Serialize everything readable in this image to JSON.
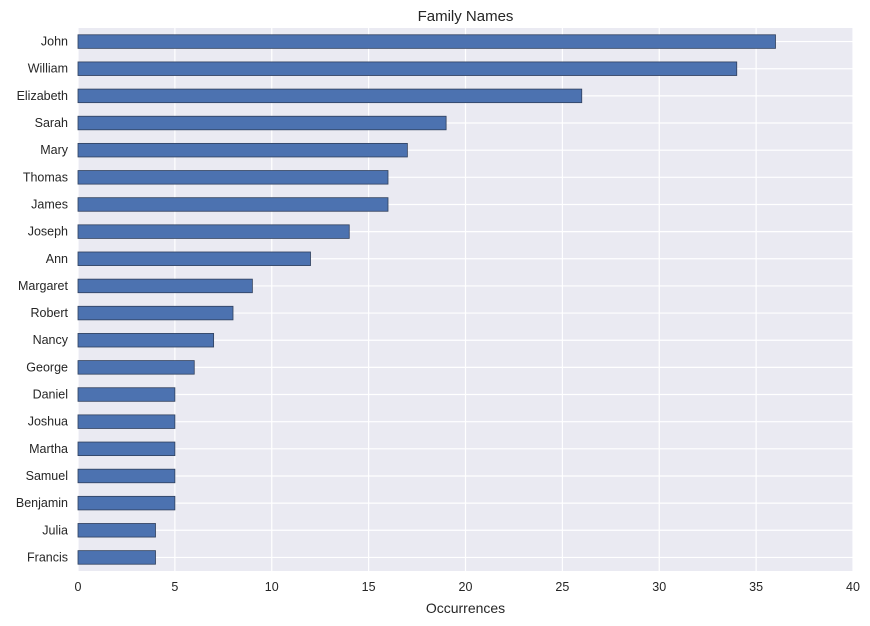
{
  "chart_data": {
    "type": "bar",
    "orientation": "horizontal",
    "title": "Family Names",
    "xlabel": "Occurrences",
    "ylabel": "",
    "xlim": [
      0,
      40
    ],
    "xticks": [
      0,
      5,
      10,
      15,
      20,
      25,
      30,
      35,
      40
    ],
    "grid": true,
    "legend": "none",
    "categories": [
      "John",
      "William",
      "Elizabeth",
      "Sarah",
      "Mary",
      "Thomas",
      "James",
      "Joseph",
      "Ann",
      "Margaret",
      "Robert",
      "Nancy",
      "George",
      "Daniel",
      "Joshua",
      "Martha",
      "Samuel",
      "Benjamin",
      "Julia",
      "Francis"
    ],
    "values": [
      36,
      34,
      26,
      19,
      17,
      16,
      16,
      14,
      12,
      9,
      8,
      7,
      6,
      5,
      5,
      5,
      5,
      5,
      4,
      4
    ],
    "colors": {
      "bar": "#4C72B0",
      "bar_edge": "#2f3f5c",
      "plot_background": "#EAEAF2",
      "grid": "#ffffff"
    }
  }
}
